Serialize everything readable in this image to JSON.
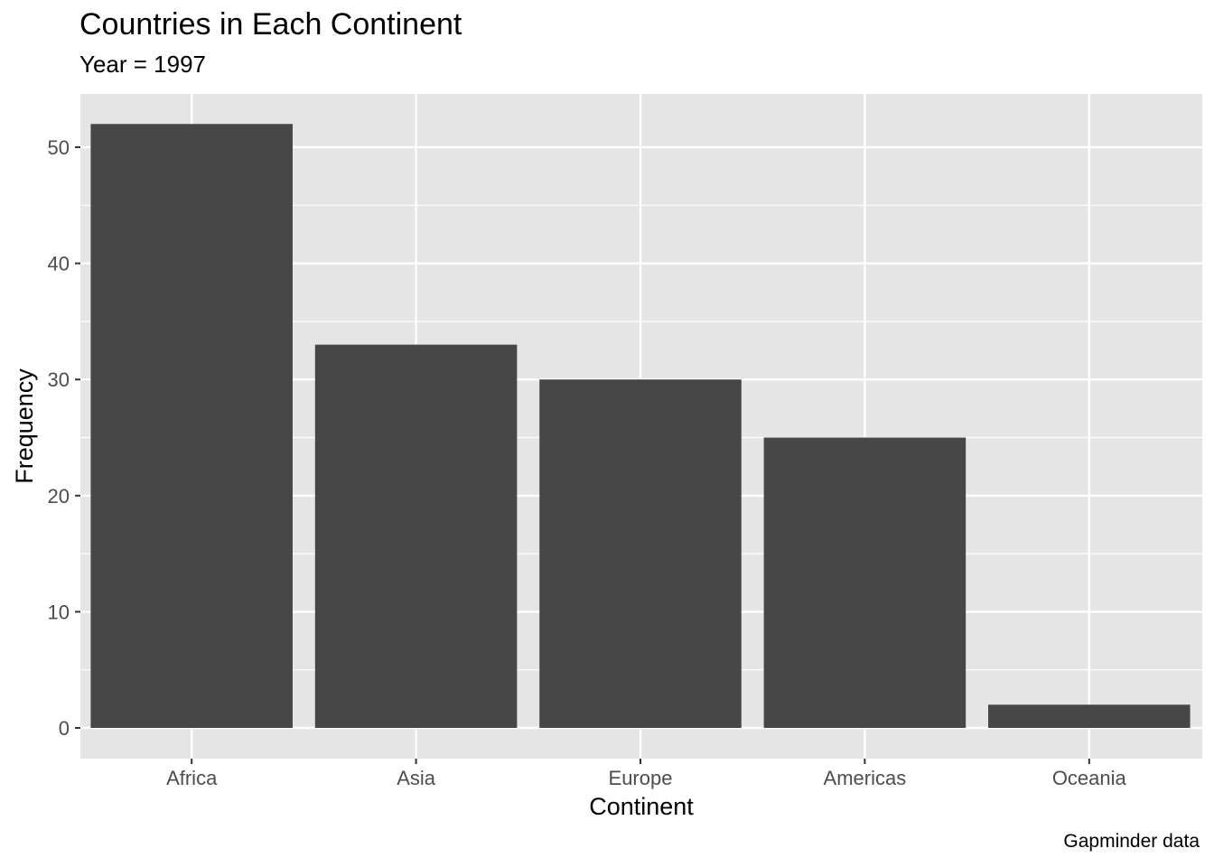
{
  "chart_data": {
    "type": "bar",
    "title": "Countries in Each Continent",
    "subtitle": "Year = 1997",
    "caption": "Gapminder data",
    "xlabel": "Continent",
    "ylabel": "Frequency",
    "categories": [
      "Africa",
      "Asia",
      "Europe",
      "Americas",
      "Oceania"
    ],
    "values": [
      52,
      33,
      30,
      25,
      2
    ],
    "ylim": [
      0,
      55
    ],
    "yticks": [
      0,
      10,
      20,
      30,
      40,
      50
    ],
    "grid": true,
    "legend": "none",
    "colors": {
      "bar": "#474747",
      "panel": "#e5e5e5",
      "grid": "#ffffff",
      "tick": "#4d4d4d"
    }
  }
}
